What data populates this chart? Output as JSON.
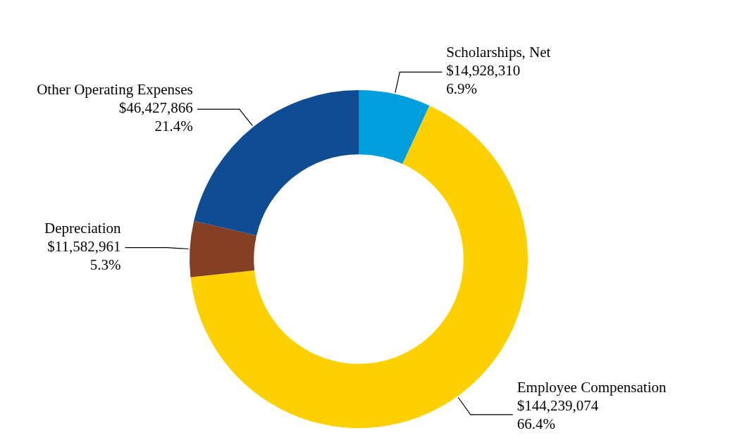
{
  "chart_data": {
    "type": "donut",
    "categories": [
      "Scholarships, Net",
      "Employee Compensation",
      "Depreciation",
      "Other Operating Expenses"
    ],
    "values": [
      14928310,
      144239074,
      11582961,
      46427866
    ],
    "colors": [
      "#009fdb",
      "#fdd100",
      "#843f24",
      "#0f4c92"
    ],
    "value_labels": [
      "$14,928,310\n6.9%",
      "$144,239,074\n66.4%",
      "$11,582,961\n5.3%",
      "$46,427,866\n21.4%"
    ]
  }
}
